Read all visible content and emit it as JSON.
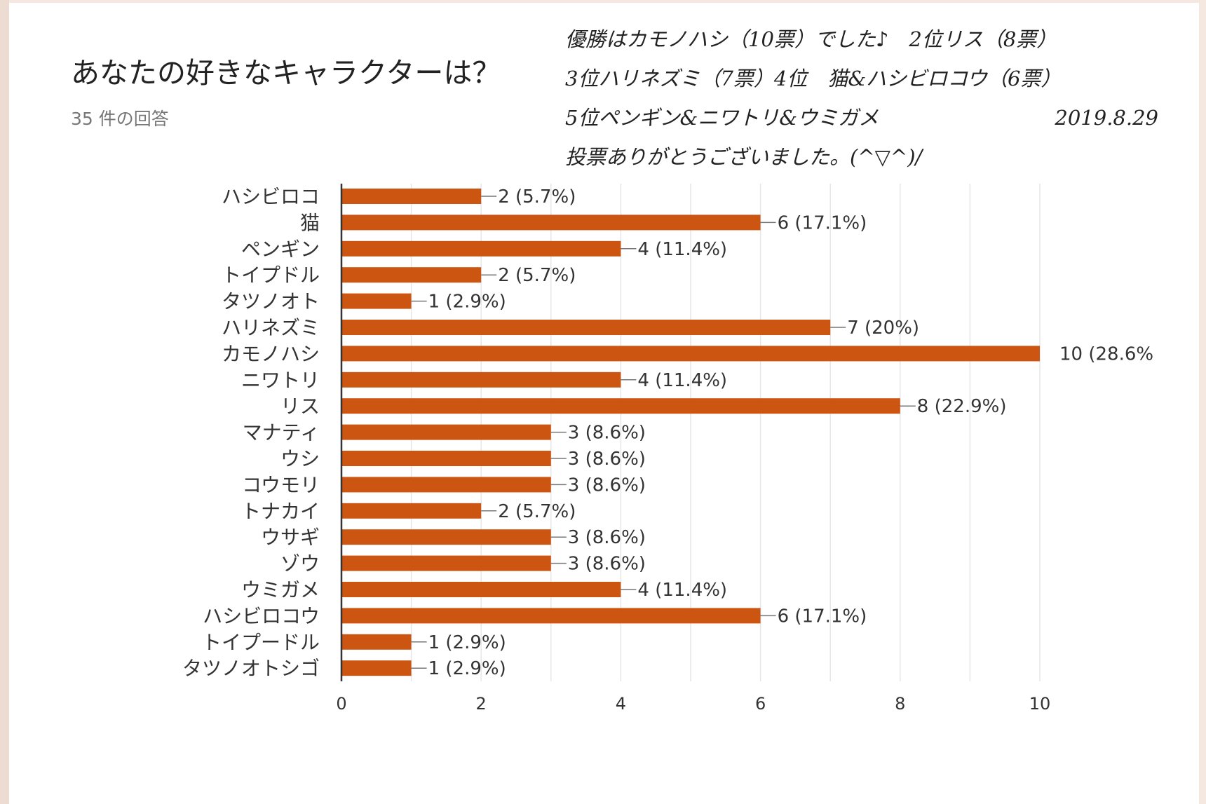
{
  "header": {
    "title": "あなたの好きなキャラクターは？",
    "response_count": "35 件の回答"
  },
  "note": {
    "line1": "優勝はカモノハシ（10票）でした♪　2位リス（8票）",
    "line2": "3位ハリネズミ（7票）4位　猫&ハシビロコウ（6票）",
    "line3": "5位ペンギン&ニワトリ&ウミガメ",
    "date": "2019.8.29",
    "line4": "投票ありがとうございました。(^▽^)/"
  },
  "colors": {
    "bar": "#cc5511",
    "grid": "#e6e6e6",
    "axis": "#333333",
    "label": "#333333"
  },
  "chart_data": {
    "type": "bar",
    "orientation": "horizontal",
    "categories": [
      "ハシビロコ",
      "猫",
      "ペンギン",
      "トイプドル",
      "タツノオト",
      "ハリネズミ",
      "カモノハシ",
      "ニワトリ",
      "リス",
      "マナティ",
      "ウシ",
      "コウモリ",
      "トナカイ",
      "ウサギ",
      "ゾウ",
      "ウミガメ",
      "ハシビロコウ",
      "トイプードル",
      "タツノオトシゴ"
    ],
    "values": [
      2,
      6,
      4,
      2,
      1,
      7,
      10,
      4,
      8,
      3,
      3,
      3,
      2,
      3,
      3,
      4,
      6,
      1,
      1
    ],
    "value_labels": [
      "2 (5.7%)",
      "6 (17.1%)",
      "4 (11.4%)",
      "2 (5.7%)",
      "1 (2.9%)",
      "7 (20%)",
      "10 (28.6%",
      "4 (11.4%)",
      "8 (22.9%)",
      "3 (8.6%)",
      "3 (8.6%)",
      "3 (8.6%)",
      "2 (5.7%)",
      "3 (8.6%)",
      "3 (8.6%)",
      "4 (11.4%)",
      "6 (17.1%)",
      "1 (2.9%)",
      "1 (2.9%)"
    ],
    "xlim": [
      0,
      10
    ],
    "xticks": [
      "0",
      "2",
      "4",
      "6",
      "8",
      "10"
    ],
    "grid": true
  }
}
